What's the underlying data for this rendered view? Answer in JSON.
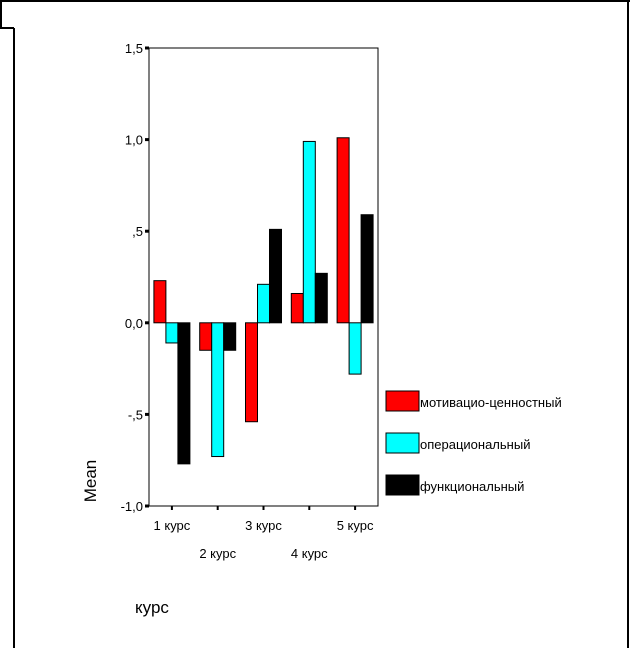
{
  "chart_data": {
    "type": "bar",
    "title": "",
    "xlabel": "курс",
    "ylabel": "Mean",
    "ylim": [
      -1.0,
      1.5
    ],
    "y_ticks": [
      {
        "value": 1.5,
        "label": "1,5"
      },
      {
        "value": 1.0,
        "label": "1,0"
      },
      {
        "value": 0.5,
        "label": ",5"
      },
      {
        "value": 0.0,
        "label": "0,0"
      },
      {
        "value": -0.5,
        "label": "-,5"
      },
      {
        "value": -1.0,
        "label": "-1,0"
      }
    ],
    "categories": [
      "1 курс",
      "2 курс",
      "3 курс",
      "4 курс",
      "5 курс"
    ],
    "series": [
      {
        "name": "мотивацио-ценностный",
        "color": "#ff0000",
        "values": [
          0.23,
          -0.15,
          -0.54,
          0.16,
          1.01
        ]
      },
      {
        "name": "операциональный",
        "color": "#00ffff",
        "values": [
          -0.11,
          -0.73,
          0.21,
          0.99,
          -0.28
        ]
      },
      {
        "name": "функциональный",
        "color": "#000000",
        "values": [
          -0.77,
          -0.15,
          0.51,
          0.27,
          0.59
        ]
      }
    ],
    "legend_position": "right",
    "grid": false
  }
}
